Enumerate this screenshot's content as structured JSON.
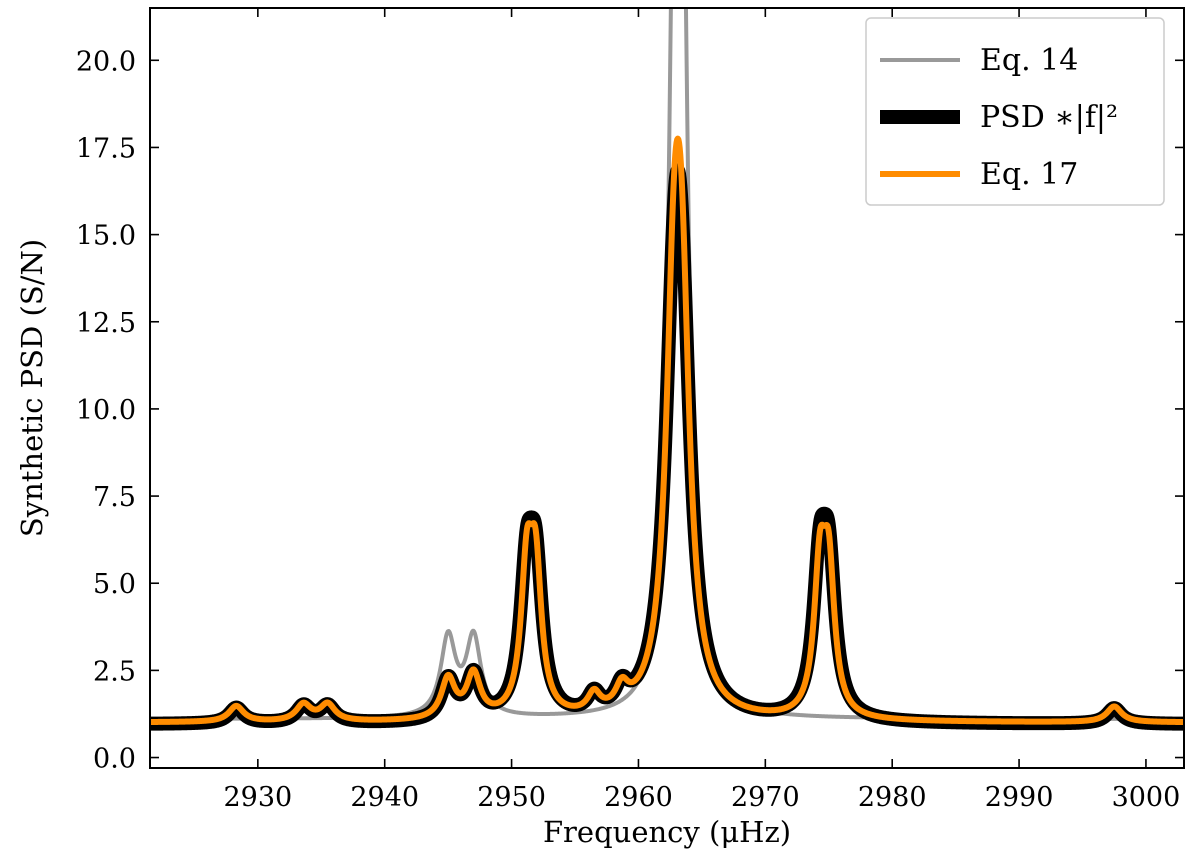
{
  "chart_data": {
    "type": "line",
    "title": "",
    "xlabel": "Frequency (μHz)",
    "ylabel": "Synthetic PSD (S/N)",
    "xlim": [
      2921.5,
      3003
    ],
    "ylim": [
      -0.3,
      21.5
    ],
    "xticks": [
      2930,
      2940,
      2950,
      2960,
      2970,
      2980,
      2990,
      3000
    ],
    "xtick_labels": [
      "2930",
      "2940",
      "2950",
      "2960",
      "2970",
      "2980",
      "2990",
      "3000"
    ],
    "yticks": [
      0.0,
      2.5,
      5.0,
      7.5,
      10.0,
      12.5,
      15.0,
      17.5,
      20.0
    ],
    "ytick_labels": [
      "0.0",
      "2.5",
      "5.0",
      "7.5",
      "10.0",
      "12.5",
      "15.0",
      "17.5",
      "20.0"
    ],
    "grid": false,
    "legend_position": "top-right",
    "series": [
      {
        "name": "Eq. 14",
        "color": "#999999",
        "background": 1.1,
        "peaks": [
          {
            "center": 2945.0,
            "height": 2.25,
            "width": 1.4
          },
          {
            "center": 2947.0,
            "height": 2.25,
            "width": 1.4
          },
          {
            "center": 2962.8,
            "height": 19.3,
            "width": 1.05
          },
          {
            "center": 2963.5,
            "height": 19.3,
            "width": 1.05
          }
        ]
      },
      {
        "name": "PSD ∗|f|²",
        "color": "#000000",
        "background": 0.95,
        "peaks": [
          {
            "center": 2928.3,
            "height": 0.45,
            "width": 1.4
          },
          {
            "center": 2933.6,
            "height": 0.48,
            "width": 1.4
          },
          {
            "center": 2935.5,
            "height": 0.48,
            "width": 1.4
          },
          {
            "center": 2945.0,
            "height": 1.15,
            "width": 1.3
          },
          {
            "center": 2947.0,
            "height": 1.25,
            "width": 1.3
          },
          {
            "center": 2951.2,
            "height": 3.8,
            "width": 1.25
          },
          {
            "center": 2951.9,
            "height": 3.8,
            "width": 1.25
          },
          {
            "center": 2956.5,
            "height": 0.55,
            "width": 1.2
          },
          {
            "center": 2958.7,
            "height": 0.62,
            "width": 1.2
          },
          {
            "center": 2962.8,
            "height": 8.9,
            "width": 1.7
          },
          {
            "center": 2963.4,
            "height": 8.9,
            "width": 1.7
          },
          {
            "center": 2974.3,
            "height": 3.9,
            "width": 1.25
          },
          {
            "center": 2975.0,
            "height": 3.9,
            "width": 1.25
          },
          {
            "center": 2997.5,
            "height": 0.45,
            "width": 1.4
          }
        ]
      },
      {
        "name": "Eq. 17",
        "color": "#ff8c00",
        "background": 1.0,
        "peaks": [
          {
            "center": 2928.3,
            "height": 0.45,
            "width": 1.4
          },
          {
            "center": 2933.6,
            "height": 0.48,
            "width": 1.4
          },
          {
            "center": 2935.5,
            "height": 0.48,
            "width": 1.4
          },
          {
            "center": 2945.0,
            "height": 1.15,
            "width": 1.3
          },
          {
            "center": 2947.0,
            "height": 1.25,
            "width": 1.3
          },
          {
            "center": 2951.2,
            "height": 3.9,
            "width": 1.1
          },
          {
            "center": 2951.9,
            "height": 3.9,
            "width": 1.1
          },
          {
            "center": 2956.5,
            "height": 0.55,
            "width": 1.2
          },
          {
            "center": 2958.7,
            "height": 0.62,
            "width": 1.2
          },
          {
            "center": 2962.8,
            "height": 9.6,
            "width": 1.55
          },
          {
            "center": 2963.4,
            "height": 9.6,
            "width": 1.55
          },
          {
            "center": 2974.3,
            "height": 3.9,
            "width": 1.1
          },
          {
            "center": 2975.0,
            "height": 3.9,
            "width": 1.1
          },
          {
            "center": 2997.5,
            "height": 0.45,
            "width": 1.4
          }
        ]
      }
    ]
  }
}
